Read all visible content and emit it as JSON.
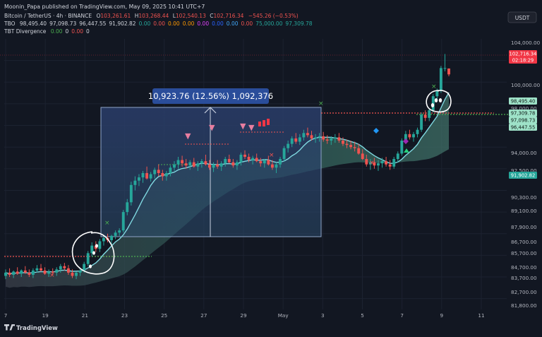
{
  "header": {
    "publisher_line": "Moonin_Papa published on TradingView.com, May 09, 2025 10:41 UTC+7"
  },
  "legend": {
    "symbol": {
      "name": "Bitcoin / TetherUS · 4h · BINANCE",
      "o_label": "O",
      "o": "103,261.61",
      "h_label": "H",
      "h": "103,268.44",
      "l_label": "L",
      "l": "102,540.13",
      "c_label": "C",
      "c": "102,716.34",
      "change": "−545.26 (−0.53%)"
    },
    "tbo": {
      "name": "TBO",
      "values": [
        {
          "text": "98,495.40",
          "color": "#d1d4dc"
        },
        {
          "text": "97,098.73",
          "color": "#d1d4dc"
        },
        {
          "text": "96,447.55",
          "color": "#d1d4dc"
        },
        {
          "text": "91,902.82",
          "color": "#d1d4dc"
        },
        {
          "text": "0.00",
          "color": "#26a69a"
        },
        {
          "text": "0.00",
          "color": "#ef5350"
        },
        {
          "text": "0.00",
          "color": "#ff9800"
        },
        {
          "text": "0.00",
          "color": "#ff9800"
        },
        {
          "text": "0.00",
          "color": "#e040fb"
        },
        {
          "text": "0.00",
          "color": "#2962ff"
        },
        {
          "text": "0.00",
          "color": "#42a5f5"
        },
        {
          "text": "0.00",
          "color": "#ef5350"
        },
        {
          "text": "75,000.00",
          "color": "#26a69a"
        },
        {
          "text": "97,309.78",
          "color": "#26a69a"
        }
      ]
    },
    "tbt": {
      "name": "TBT Divergence",
      "values": [
        {
          "text": "0.00",
          "color": "#4caf50"
        },
        {
          "text": "0",
          "color": "#d1d4dc"
        },
        {
          "text": "0.00",
          "color": "#ef5350"
        },
        {
          "text": "0",
          "color": "#d1d4dc"
        }
      ]
    }
  },
  "currency_badge": "USDT",
  "measure_label": "10,923.76 (12.56%) 1,092,376",
  "price_axis": {
    "ticks": [
      "104,000.00",
      "100,000.00",
      "98,000.00",
      "94,000.00",
      "92,500.00",
      "90,300.00",
      "89,100.00",
      "87,900.00",
      "86,700.00",
      "85,700.00",
      "84,700.00",
      "83,700.00",
      "82,700.00",
      "81,800.00"
    ],
    "tags": [
      {
        "text": "102,716.34",
        "sub": "02:18:29",
        "color": "#f23645"
      },
      {
        "text": "98,495.40",
        "sub": "",
        "color": "#9ee2c8"
      },
      {
        "text": "97,309.78",
        "sub": "",
        "color": "#9ee2c8"
      },
      {
        "text": "97,098.73",
        "sub": "",
        "color": "#9ee2c8"
      },
      {
        "text": "96,447.55",
        "sub": "",
        "color": "#9ee2c8"
      },
      {
        "text": "91,902.82",
        "sub": "",
        "color": "#26a69a"
      }
    ]
  },
  "time_axis": {
    "labels": [
      "7",
      "19",
      "21",
      "23",
      "25",
      "27",
      "29",
      "May",
      "3",
      "5",
      "7",
      "9",
      "11"
    ]
  },
  "footer": {
    "logo_text": "TradingView"
  },
  "chart_data": {
    "type": "candlestick",
    "symbol": "BTCUSDT",
    "interval": "4h",
    "ylim": [
      81000,
      106000
    ],
    "colors": {
      "up": "#26a69a",
      "down": "#ef5350",
      "ma": "#7fd8e0",
      "band": "#2c5a54"
    },
    "candles": [
      {
        "o": 84100,
        "h": 84700,
        "l": 83800,
        "c": 84400
      },
      {
        "o": 84400,
        "h": 84800,
        "l": 84000,
        "c": 84200
      },
      {
        "o": 84200,
        "h": 84600,
        "l": 83900,
        "c": 84500
      },
      {
        "o": 84500,
        "h": 84900,
        "l": 84200,
        "c": 84300
      },
      {
        "o": 84300,
        "h": 84700,
        "l": 84000,
        "c": 84600
      },
      {
        "o": 84600,
        "h": 85000,
        "l": 84300,
        "c": 84400
      },
      {
        "o": 84400,
        "h": 84700,
        "l": 84000,
        "c": 84200
      },
      {
        "o": 84200,
        "h": 84800,
        "l": 83900,
        "c": 84600
      },
      {
        "o": 84600,
        "h": 85100,
        "l": 84400,
        "c": 84800
      },
      {
        "o": 84800,
        "h": 85200,
        "l": 84500,
        "c": 84600
      },
      {
        "o": 84600,
        "h": 84900,
        "l": 84200,
        "c": 84300
      },
      {
        "o": 84300,
        "h": 84700,
        "l": 84000,
        "c": 84500
      },
      {
        "o": 84500,
        "h": 84800,
        "l": 84200,
        "c": 84400
      },
      {
        "o": 84400,
        "h": 84900,
        "l": 84100,
        "c": 84700
      },
      {
        "o": 84700,
        "h": 85200,
        "l": 84400,
        "c": 85000
      },
      {
        "o": 85000,
        "h": 85300,
        "l": 84600,
        "c": 84800
      },
      {
        "o": 84800,
        "h": 85100,
        "l": 84200,
        "c": 84400
      },
      {
        "o": 84400,
        "h": 84700,
        "l": 83900,
        "c": 84100
      },
      {
        "o": 84100,
        "h": 84500,
        "l": 83800,
        "c": 84400
      },
      {
        "o": 84400,
        "h": 84800,
        "l": 84100,
        "c": 84600
      },
      {
        "o": 84600,
        "h": 85400,
        "l": 84400,
        "c": 85200
      },
      {
        "o": 85200,
        "h": 86400,
        "l": 85000,
        "c": 86200
      },
      {
        "o": 86200,
        "h": 87200,
        "l": 85900,
        "c": 86900
      },
      {
        "o": 86900,
        "h": 87300,
        "l": 86300,
        "c": 86600
      },
      {
        "o": 86600,
        "h": 87500,
        "l": 86300,
        "c": 87300
      },
      {
        "o": 87300,
        "h": 87800,
        "l": 86900,
        "c": 87600
      },
      {
        "o": 87600,
        "h": 88000,
        "l": 87200,
        "c": 87400
      },
      {
        "o": 87400,
        "h": 87900,
        "l": 87000,
        "c": 87800
      },
      {
        "o": 87800,
        "h": 88300,
        "l": 87500,
        "c": 88100
      },
      {
        "o": 88100,
        "h": 88500,
        "l": 87800,
        "c": 88300
      },
      {
        "o": 88300,
        "h": 90200,
        "l": 88100,
        "c": 90000
      },
      {
        "o": 90000,
        "h": 91200,
        "l": 89700,
        "c": 90900
      },
      {
        "o": 90900,
        "h": 92800,
        "l": 90600,
        "c": 92500
      },
      {
        "o": 92500,
        "h": 93300,
        "l": 92000,
        "c": 92900
      },
      {
        "o": 92900,
        "h": 93500,
        "l": 92400,
        "c": 93200
      },
      {
        "o": 93200,
        "h": 93800,
        "l": 92700,
        "c": 93600
      },
      {
        "o": 93600,
        "h": 94200,
        "l": 93000,
        "c": 93100
      },
      {
        "o": 93100,
        "h": 93700,
        "l": 92800,
        "c": 93500
      },
      {
        "o": 93500,
        "h": 94100,
        "l": 93100,
        "c": 93900
      },
      {
        "o": 93900,
        "h": 94400,
        "l": 93300,
        "c": 93600
      },
      {
        "o": 93600,
        "h": 93900,
        "l": 92900,
        "c": 93300
      },
      {
        "o": 93300,
        "h": 93800,
        "l": 92900,
        "c": 93600
      },
      {
        "o": 93600,
        "h": 94300,
        "l": 93300,
        "c": 94100
      },
      {
        "o": 94100,
        "h": 94700,
        "l": 93800,
        "c": 94400
      },
      {
        "o": 94400,
        "h": 95100,
        "l": 94000,
        "c": 94800
      },
      {
        "o": 94800,
        "h": 95200,
        "l": 94200,
        "c": 94500
      },
      {
        "o": 94500,
        "h": 94900,
        "l": 94000,
        "c": 94300
      },
      {
        "o": 94300,
        "h": 94800,
        "l": 93900,
        "c": 94600
      },
      {
        "o": 94600,
        "h": 95000,
        "l": 94100,
        "c": 94200
      },
      {
        "o": 94200,
        "h": 94700,
        "l": 93800,
        "c": 94500
      },
      {
        "o": 94500,
        "h": 94900,
        "l": 94100,
        "c": 94700
      },
      {
        "o": 94700,
        "h": 95300,
        "l": 94300,
        "c": 94400
      },
      {
        "o": 94400,
        "h": 94800,
        "l": 93900,
        "c": 94100
      },
      {
        "o": 94100,
        "h": 94600,
        "l": 93700,
        "c": 94400
      },
      {
        "o": 94400,
        "h": 94800,
        "l": 94000,
        "c": 94200
      },
      {
        "o": 94200,
        "h": 94700,
        "l": 93800,
        "c": 94500
      },
      {
        "o": 94500,
        "h": 95100,
        "l": 94200,
        "c": 94900
      },
      {
        "o": 94900,
        "h": 95300,
        "l": 94500,
        "c": 94600
      },
      {
        "o": 94600,
        "h": 94900,
        "l": 94100,
        "c": 94300
      },
      {
        "o": 94300,
        "h": 94800,
        "l": 93900,
        "c": 94600
      },
      {
        "o": 94600,
        "h": 95500,
        "l": 94300,
        "c": 95300
      },
      {
        "o": 95300,
        "h": 95700,
        "l": 94900,
        "c": 95100
      },
      {
        "o": 95100,
        "h": 95400,
        "l": 94600,
        "c": 94800
      },
      {
        "o": 94800,
        "h": 95200,
        "l": 94400,
        "c": 95000
      },
      {
        "o": 95000,
        "h": 95400,
        "l": 94600,
        "c": 94700
      },
      {
        "o": 94700,
        "h": 95000,
        "l": 94200,
        "c": 94500
      },
      {
        "o": 94500,
        "h": 94900,
        "l": 94100,
        "c": 94800
      },
      {
        "o": 94800,
        "h": 95200,
        "l": 94300,
        "c": 94400
      },
      {
        "o": 94400,
        "h": 94800,
        "l": 93900,
        "c": 94100
      },
      {
        "o": 94100,
        "h": 94600,
        "l": 93600,
        "c": 94400
      },
      {
        "o": 94400,
        "h": 95100,
        "l": 94100,
        "c": 94900
      },
      {
        "o": 94900,
        "h": 96100,
        "l": 94700,
        "c": 95900
      },
      {
        "o": 95900,
        "h": 96600,
        "l": 95500,
        "c": 96300
      },
      {
        "o": 96300,
        "h": 97000,
        "l": 96000,
        "c": 96800
      },
      {
        "o": 96800,
        "h": 97300,
        "l": 96300,
        "c": 96500
      },
      {
        "o": 96500,
        "h": 97200,
        "l": 96200,
        "c": 96900
      },
      {
        "o": 96900,
        "h": 97600,
        "l": 96600,
        "c": 97300
      },
      {
        "o": 97300,
        "h": 97800,
        "l": 96900,
        "c": 97100
      },
      {
        "o": 97100,
        "h": 97500,
        "l": 96600,
        "c": 96800
      },
      {
        "o": 96800,
        "h": 97200,
        "l": 96400,
        "c": 96900
      },
      {
        "o": 96900,
        "h": 97300,
        "l": 96500,
        "c": 97000
      },
      {
        "o": 97000,
        "h": 97400,
        "l": 96500,
        "c": 96700
      },
      {
        "o": 96700,
        "h": 97100,
        "l": 96300,
        "c": 96600
      },
      {
        "o": 96600,
        "h": 97000,
        "l": 96200,
        "c": 96800
      },
      {
        "o": 96800,
        "h": 97200,
        "l": 96400,
        "c": 96900
      },
      {
        "o": 96900,
        "h": 97300,
        "l": 96400,
        "c": 96600
      },
      {
        "o": 96600,
        "h": 96900,
        "l": 96100,
        "c": 96300
      },
      {
        "o": 96300,
        "h": 96700,
        "l": 95900,
        "c": 96200
      },
      {
        "o": 96200,
        "h": 96600,
        "l": 95800,
        "c": 96000
      },
      {
        "o": 96000,
        "h": 96500,
        "l": 95600,
        "c": 95900
      },
      {
        "o": 95900,
        "h": 96300,
        "l": 95300,
        "c": 95400
      },
      {
        "o": 95400,
        "h": 95800,
        "l": 94800,
        "c": 94900
      },
      {
        "o": 94900,
        "h": 95300,
        "l": 94200,
        "c": 94400
      },
      {
        "o": 94400,
        "h": 94900,
        "l": 93900,
        "c": 94600
      },
      {
        "o": 94600,
        "h": 95000,
        "l": 94000,
        "c": 94300
      },
      {
        "o": 94300,
        "h": 94800,
        "l": 93800,
        "c": 94500
      },
      {
        "o": 94500,
        "h": 95000,
        "l": 94100,
        "c": 94700
      },
      {
        "o": 94700,
        "h": 95100,
        "l": 94200,
        "c": 94400
      },
      {
        "o": 94400,
        "h": 94800,
        "l": 93900,
        "c": 94200
      },
      {
        "o": 94200,
        "h": 95100,
        "l": 94000,
        "c": 94900
      },
      {
        "o": 94900,
        "h": 95600,
        "l": 94600,
        "c": 95400
      },
      {
        "o": 95400,
        "h": 96800,
        "l": 95200,
        "c": 96600
      },
      {
        "o": 96600,
        "h": 97500,
        "l": 96300,
        "c": 97200
      },
      {
        "o": 97200,
        "h": 97600,
        "l": 96700,
        "c": 96900
      },
      {
        "o": 96900,
        "h": 97400,
        "l": 96500,
        "c": 97200
      },
      {
        "o": 97200,
        "h": 97800,
        "l": 96900,
        "c": 97600
      },
      {
        "o": 97600,
        "h": 99200,
        "l": 97400,
        "c": 99000
      },
      {
        "o": 99000,
        "h": 99400,
        "l": 98400,
        "c": 98700
      },
      {
        "o": 98700,
        "h": 99600,
        "l": 98400,
        "c": 99400
      },
      {
        "o": 99400,
        "h": 100900,
        "l": 99200,
        "c": 100700
      },
      {
        "o": 100700,
        "h": 101400,
        "l": 100300,
        "c": 101200
      },
      {
        "o": 101200,
        "h": 103500,
        "l": 101000,
        "c": 103300
      },
      {
        "o": 103300,
        "h": 104600,
        "l": 103000,
        "c": 103300
      },
      {
        "o": 103261.61,
        "h": 103268.44,
        "l": 102540.13,
        "c": 102716.34
      }
    ]
  }
}
